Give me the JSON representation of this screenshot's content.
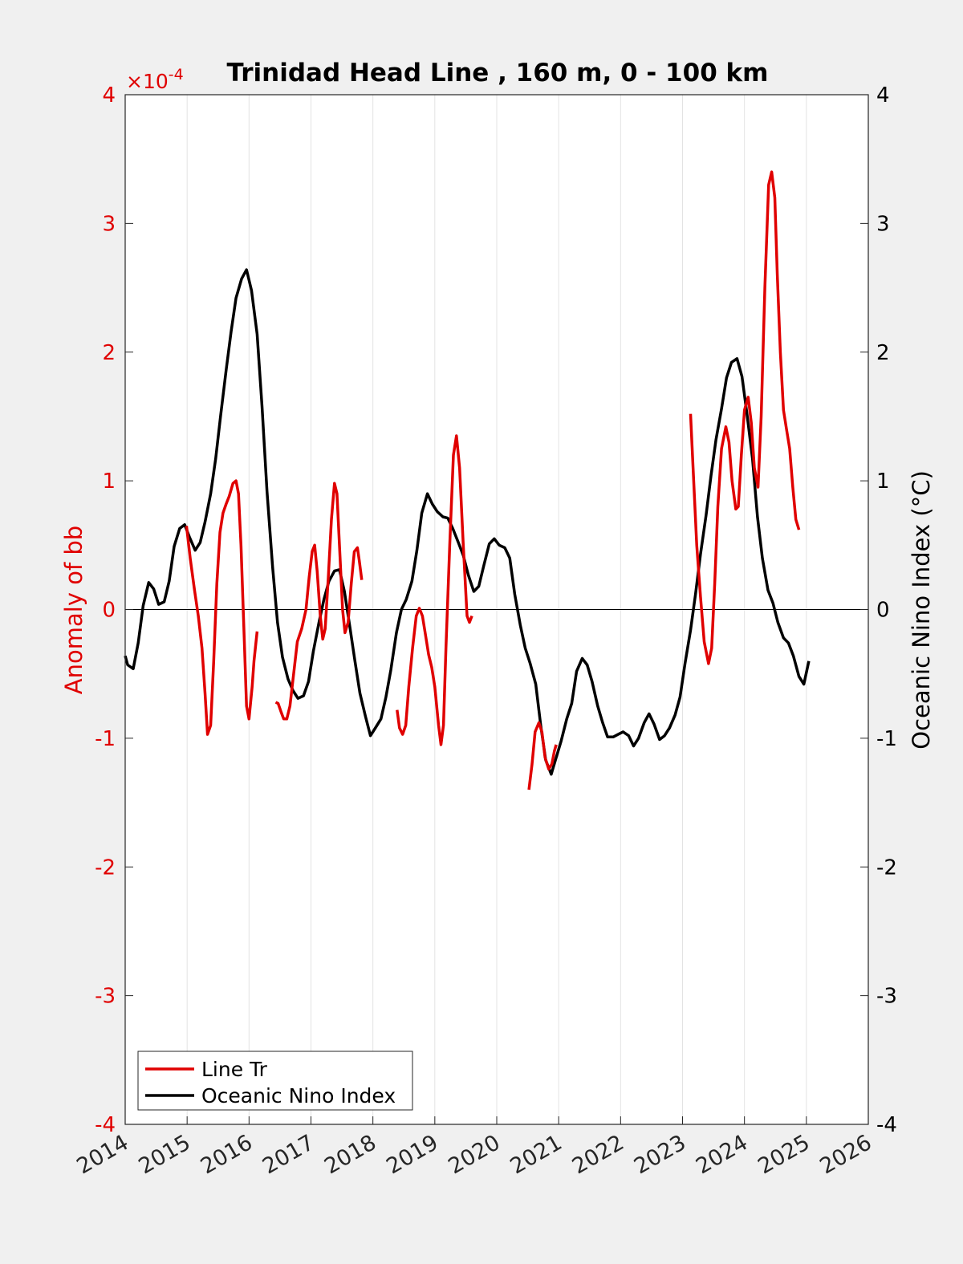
{
  "chart_data": {
    "type": "line",
    "title": "Trinidad Head Line , 160 m, 0 - 100 km",
    "xlabel": "",
    "ylabel_left": "Anomaly of bb",
    "ylabel_right": "Oceanic Nino Index (°C)",
    "left_axis_exponent": "×10",
    "left_axis_exponent_power": "-4",
    "xlim": [
      2014,
      2026
    ],
    "ylim_left": [
      -4,
      4
    ],
    "ylim_right": [
      -4,
      4
    ],
    "xticks": [
      "2014",
      "2015",
      "2016",
      "2017",
      "2018",
      "2019",
      "2020",
      "2021",
      "2022",
      "2023",
      "2024",
      "2025",
      "2026"
    ],
    "yticks_left": [
      "-4",
      "-3",
      "-2",
      "-1",
      "0",
      "1",
      "2",
      "3",
      "4"
    ],
    "yticks_right": [
      "-4",
      "-3",
      "-2",
      "-1",
      "0",
      "1",
      "2",
      "3",
      "4"
    ],
    "grid": "vertical",
    "zero_line": true,
    "legend_position": "bottom-left",
    "colors": {
      "left_axis": "#e00000",
      "right_axis": "#000000"
    },
    "series": [
      {
        "name": "Line Tr",
        "color": "#e00000",
        "axis": "left",
        "units_scale": "1e-4",
        "segments": [
          [
            [
              2014.99,
              0.65
            ],
            [
              2015.05,
              0.4
            ],
            [
              2015.12,
              0.15
            ],
            [
              2015.18,
              -0.05
            ],
            [
              2015.24,
              -0.3
            ],
            [
              2015.29,
              -0.65
            ],
            [
              2015.33,
              -0.97
            ],
            [
              2015.38,
              -0.9
            ],
            [
              2015.43,
              -0.4
            ],
            [
              2015.48,
              0.2
            ],
            [
              2015.53,
              0.6
            ],
            [
              2015.58,
              0.75
            ],
            [
              2015.63,
              0.82
            ],
            [
              2015.68,
              0.88
            ],
            [
              2015.74,
              0.98
            ],
            [
              2015.79,
              1.0
            ],
            [
              2015.83,
              0.9
            ],
            [
              2015.87,
              0.5
            ],
            [
              2015.92,
              -0.2
            ],
            [
              2015.96,
              -0.75
            ],
            [
              2016.0,
              -0.85
            ],
            [
              2016.05,
              -0.6
            ],
            [
              2016.08,
              -0.4
            ],
            [
              2016.13,
              -0.17
            ]
          ],
          [
            [
              2016.43,
              -0.72
            ],
            [
              2016.47,
              -0.73
            ],
            [
              2016.52,
              -0.8
            ],
            [
              2016.56,
              -0.85
            ],
            [
              2016.61,
              -0.85
            ],
            [
              2016.66,
              -0.75
            ],
            [
              2016.72,
              -0.5
            ],
            [
              2016.78,
              -0.25
            ],
            [
              2016.85,
              -0.15
            ],
            [
              2016.92,
              0.0
            ],
            [
              2016.97,
              0.25
            ],
            [
              2017.02,
              0.45
            ],
            [
              2017.06,
              0.5
            ],
            [
              2017.1,
              0.3
            ],
            [
              2017.15,
              -0.05
            ],
            [
              2017.19,
              -0.23
            ],
            [
              2017.23,
              -0.15
            ],
            [
              2017.28,
              0.25
            ],
            [
              2017.33,
              0.7
            ],
            [
              2017.38,
              0.98
            ],
            [
              2017.42,
              0.9
            ],
            [
              2017.46,
              0.5
            ],
            [
              2017.51,
              0.0
            ],
            [
              2017.55,
              -0.18
            ],
            [
              2017.6,
              -0.1
            ],
            [
              2017.65,
              0.2
            ],
            [
              2017.7,
              0.45
            ],
            [
              2017.75,
              0.48
            ],
            [
              2017.78,
              0.38
            ],
            [
              2017.82,
              0.23
            ]
          ],
          [
            [
              2018.39,
              -0.78
            ],
            [
              2018.43,
              -0.92
            ],
            [
              2018.48,
              -0.97
            ],
            [
              2018.53,
              -0.9
            ],
            [
              2018.58,
              -0.6
            ],
            [
              2018.64,
              -0.3
            ],
            [
              2018.7,
              -0.05
            ],
            [
              2018.75,
              0.01
            ],
            [
              2018.8,
              -0.05
            ],
            [
              2018.85,
              -0.2
            ],
            [
              2018.9,
              -0.35
            ],
            [
              2018.95,
              -0.45
            ],
            [
              2019.0,
              -0.6
            ],
            [
              2019.06,
              -0.9
            ],
            [
              2019.1,
              -1.05
            ],
            [
              2019.14,
              -0.9
            ],
            [
              2019.18,
              -0.3
            ],
            [
              2019.24,
              0.5
            ],
            [
              2019.3,
              1.2
            ],
            [
              2019.35,
              1.35
            ],
            [
              2019.4,
              1.1
            ],
            [
              2019.46,
              0.5
            ],
            [
              2019.52,
              -0.05
            ],
            [
              2019.56,
              -0.1
            ],
            [
              2019.6,
              -0.05
            ]
          ],
          [
            [
              2020.52,
              -1.4
            ],
            [
              2020.57,
              -1.2
            ],
            [
              2020.62,
              -0.95
            ],
            [
              2020.68,
              -0.88
            ],
            [
              2020.73,
              -0.95
            ],
            [
              2020.78,
              -1.15
            ],
            [
              2020.84,
              -1.24
            ],
            [
              2020.89,
              -1.2
            ],
            [
              2020.93,
              -1.1
            ],
            [
              2020.96,
              -1.05
            ]
          ],
          [
            [
              2023.13,
              1.52
            ],
            [
              2023.18,
              1.0
            ],
            [
              2023.23,
              0.5
            ],
            [
              2023.29,
              0.1
            ],
            [
              2023.35,
              -0.25
            ],
            [
              2023.42,
              -0.42
            ],
            [
              2023.47,
              -0.3
            ],
            [
              2023.52,
              0.2
            ],
            [
              2023.57,
              0.8
            ],
            [
              2023.63,
              1.25
            ],
            [
              2023.7,
              1.42
            ],
            [
              2023.75,
              1.3
            ],
            [
              2023.8,
              1.0
            ],
            [
              2023.86,
              0.78
            ],
            [
              2023.9,
              0.8
            ],
            [
              2023.95,
              1.2
            ],
            [
              2024.0,
              1.55
            ],
            [
              2024.06,
              1.65
            ],
            [
              2024.11,
              1.45
            ],
            [
              2024.16,
              1.1
            ],
            [
              2024.22,
              0.95
            ],
            [
              2024.27,
              1.5
            ],
            [
              2024.33,
              2.5
            ],
            [
              2024.39,
              3.3
            ],
            [
              2024.44,
              3.4
            ],
            [
              2024.49,
              3.2
            ],
            [
              2024.53,
              2.6
            ],
            [
              2024.58,
              2.0
            ],
            [
              2024.63,
              1.55
            ],
            [
              2024.68,
              1.4
            ],
            [
              2024.73,
              1.25
            ],
            [
              2024.78,
              0.95
            ],
            [
              2024.83,
              0.7
            ],
            [
              2024.88,
              0.62
            ]
          ]
        ]
      },
      {
        "name": "Oceanic Nino Index",
        "color": "#000000",
        "axis": "right",
        "points": [
          [
            2014.0,
            -0.36
          ],
          [
            2014.04,
            -0.43
          ],
          [
            2014.13,
            -0.46
          ],
          [
            2014.21,
            -0.26
          ],
          [
            2014.29,
            0.03
          ],
          [
            2014.38,
            0.21
          ],
          [
            2014.46,
            0.16
          ],
          [
            2014.54,
            0.04
          ],
          [
            2014.63,
            0.06
          ],
          [
            2014.71,
            0.22
          ],
          [
            2014.79,
            0.49
          ],
          [
            2014.88,
            0.63
          ],
          [
            2014.96,
            0.66
          ],
          [
            2015.04,
            0.56
          ],
          [
            2015.13,
            0.46
          ],
          [
            2015.21,
            0.52
          ],
          [
            2015.29,
            0.68
          ],
          [
            2015.38,
            0.9
          ],
          [
            2015.46,
            1.17
          ],
          [
            2015.54,
            1.5
          ],
          [
            2015.63,
            1.86
          ],
          [
            2015.71,
            2.16
          ],
          [
            2015.79,
            2.42
          ],
          [
            2015.88,
            2.57
          ],
          [
            2015.96,
            2.64
          ],
          [
            2016.04,
            2.48
          ],
          [
            2016.13,
            2.14
          ],
          [
            2016.21,
            1.58
          ],
          [
            2016.29,
            0.92
          ],
          [
            2016.38,
            0.33
          ],
          [
            2016.46,
            -0.1
          ],
          [
            2016.54,
            -0.37
          ],
          [
            2016.63,
            -0.54
          ],
          [
            2016.71,
            -0.63
          ],
          [
            2016.79,
            -0.69
          ],
          [
            2016.88,
            -0.67
          ],
          [
            2016.96,
            -0.56
          ],
          [
            2017.04,
            -0.32
          ],
          [
            2017.13,
            -0.1
          ],
          [
            2017.21,
            0.08
          ],
          [
            2017.29,
            0.22
          ],
          [
            2017.38,
            0.3
          ],
          [
            2017.46,
            0.31
          ],
          [
            2017.54,
            0.14
          ],
          [
            2017.63,
            -0.14
          ],
          [
            2017.71,
            -0.4
          ],
          [
            2017.79,
            -0.65
          ],
          [
            2017.88,
            -0.83
          ],
          [
            2017.96,
            -0.98
          ],
          [
            2018.04,
            -0.92
          ],
          [
            2018.13,
            -0.85
          ],
          [
            2018.21,
            -0.68
          ],
          [
            2018.29,
            -0.47
          ],
          [
            2018.38,
            -0.18
          ],
          [
            2018.46,
            0.0
          ],
          [
            2018.54,
            0.08
          ],
          [
            2018.63,
            0.22
          ],
          [
            2018.71,
            0.46
          ],
          [
            2018.79,
            0.75
          ],
          [
            2018.88,
            0.9
          ],
          [
            2018.96,
            0.82
          ],
          [
            2019.04,
            0.76
          ],
          [
            2019.13,
            0.72
          ],
          [
            2019.21,
            0.71
          ],
          [
            2019.29,
            0.63
          ],
          [
            2019.38,
            0.52
          ],
          [
            2019.46,
            0.42
          ],
          [
            2019.54,
            0.27
          ],
          [
            2019.63,
            0.14
          ],
          [
            2019.71,
            0.18
          ],
          [
            2019.79,
            0.34
          ],
          [
            2019.88,
            0.51
          ],
          [
            2019.96,
            0.55
          ],
          [
            2020.04,
            0.5
          ],
          [
            2020.13,
            0.48
          ],
          [
            2020.21,
            0.4
          ],
          [
            2020.29,
            0.12
          ],
          [
            2020.38,
            -0.12
          ],
          [
            2020.46,
            -0.3
          ],
          [
            2020.54,
            -0.42
          ],
          [
            2020.63,
            -0.58
          ],
          [
            2020.71,
            -0.9
          ],
          [
            2020.79,
            -1.17
          ],
          [
            2020.88,
            -1.28
          ],
          [
            2020.96,
            -1.15
          ],
          [
            2021.04,
            -1.02
          ],
          [
            2021.13,
            -0.85
          ],
          [
            2021.21,
            -0.73
          ],
          [
            2021.29,
            -0.48
          ],
          [
            2021.38,
            -0.38
          ],
          [
            2021.46,
            -0.43
          ],
          [
            2021.54,
            -0.56
          ],
          [
            2021.63,
            -0.75
          ],
          [
            2021.71,
            -0.88
          ],
          [
            2021.79,
            -0.99
          ],
          [
            2021.88,
            -0.99
          ],
          [
            2021.96,
            -0.97
          ],
          [
            2022.04,
            -0.95
          ],
          [
            2022.13,
            -0.98
          ],
          [
            2022.21,
            -1.06
          ],
          [
            2022.29,
            -1.0
          ],
          [
            2022.38,
            -0.88
          ],
          [
            2022.46,
            -0.81
          ],
          [
            2022.54,
            -0.89
          ],
          [
            2022.63,
            -1.01
          ],
          [
            2022.71,
            -0.98
          ],
          [
            2022.79,
            -0.92
          ],
          [
            2022.88,
            -0.82
          ],
          [
            2022.96,
            -0.68
          ],
          [
            2023.04,
            -0.42
          ],
          [
            2023.13,
            -0.16
          ],
          [
            2023.21,
            0.12
          ],
          [
            2023.29,
            0.43
          ],
          [
            2023.38,
            0.73
          ],
          [
            2023.46,
            1.04
          ],
          [
            2023.54,
            1.32
          ],
          [
            2023.63,
            1.56
          ],
          [
            2023.71,
            1.8
          ],
          [
            2023.79,
            1.92
          ],
          [
            2023.88,
            1.95
          ],
          [
            2023.96,
            1.81
          ],
          [
            2024.04,
            1.52
          ],
          [
            2024.13,
            1.17
          ],
          [
            2024.21,
            0.72
          ],
          [
            2024.29,
            0.4
          ],
          [
            2024.38,
            0.15
          ],
          [
            2024.46,
            0.05
          ],
          [
            2024.54,
            -0.1
          ],
          [
            2024.63,
            -0.22
          ],
          [
            2024.71,
            -0.26
          ],
          [
            2024.79,
            -0.36
          ],
          [
            2024.88,
            -0.52
          ],
          [
            2024.96,
            -0.58
          ],
          [
            2025.04,
            -0.4
          ]
        ]
      }
    ]
  }
}
